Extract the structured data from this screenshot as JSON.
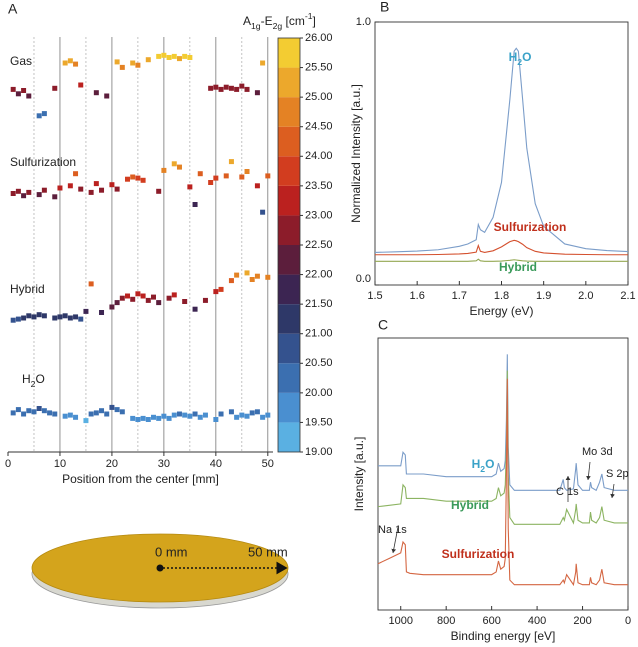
{
  "chart_data": [
    {
      "type": "scatter",
      "panel": "A",
      "colorbar_title": [
        "A",
        "1g",
        "-E",
        "2g",
        " [cm",
        "-1",
        "]"
      ],
      "xlabel": "Position from the center [mm]",
      "xlim": [
        0,
        51
      ],
      "xticks": [
        0,
        10,
        20,
        30,
        40,
        50
      ],
      "clim": [
        19,
        26
      ],
      "cticks": [
        {
          "value": 19,
          "label": "19.00"
        },
        {
          "value": 19.5,
          "label": "19.50"
        },
        {
          "value": 20,
          "label": "20.00"
        },
        {
          "value": 20.5,
          "label": "20.50"
        },
        {
          "value": 21,
          "label": "21.00"
        },
        {
          "value": 21.5,
          "label": "21.50"
        },
        {
          "value": 22,
          "label": "22.00"
        },
        {
          "value": 22.5,
          "label": "22.50"
        },
        {
          "value": 23,
          "label": "23.00"
        },
        {
          "value": 23.5,
          "label": "23.50"
        },
        {
          "value": 24,
          "label": "24.00"
        },
        {
          "value": 24.5,
          "label": "24.50"
        },
        {
          "value": 25,
          "label": "25.00"
        },
        {
          "value": 25.5,
          "label": "25.50"
        },
        {
          "value": 26,
          "label": "26.00"
        }
      ],
      "colors": [
        "#5ab0e2",
        "#4a8fd0",
        "#3b6fb0",
        "#34528e",
        "#2e3868",
        "#3c2552",
        "#5c1e3c",
        "#8c1c2a",
        "#bb211f",
        "#d23d1f",
        "#dc5e20",
        "#e48224",
        "#eca82c",
        "#f3cc32"
      ],
      "rows": [
        {
          "name": "Gas",
          "x": [
            1,
            2,
            3,
            4,
            6,
            7,
            9,
            11,
            12,
            13,
            14,
            17,
            19,
            21,
            22,
            24,
            25,
            27,
            29,
            30,
            31,
            32,
            33,
            34,
            35,
            39,
            40,
            41,
            42,
            43,
            44,
            45,
            46,
            48,
            49
          ],
          "values": [
            22.6,
            22.2,
            22.5,
            22.0,
            20.2,
            20.4,
            22.7,
            25.0,
            25.2,
            24.9,
            23.0,
            22.3,
            22.0,
            25.1,
            24.6,
            25.0,
            24.8,
            25.3,
            25.6,
            25.7,
            25.5,
            25.6,
            25.4,
            25.6,
            25.5,
            22.7,
            22.8,
            22.6,
            22.8,
            22.7,
            22.6,
            22.9,
            22.6,
            22.3,
            25.0
          ]
        },
        {
          "name": "Sulfurization",
          "x": [
            1,
            2,
            3,
            4,
            6,
            7,
            9,
            10,
            12,
            13,
            14,
            16,
            17,
            18,
            20,
            21,
            23,
            24,
            25,
            26,
            29,
            30,
            32,
            33,
            35,
            36,
            37,
            39,
            40,
            42,
            43,
            45,
            46,
            48,
            49,
            50
          ],
          "values": [
            22.5,
            22.7,
            22.3,
            22.6,
            22.4,
            22.8,
            22.2,
            23.0,
            23.2,
            24.3,
            22.9,
            22.6,
            23.4,
            22.8,
            23.3,
            22.9,
            23.8,
            24.0,
            23.9,
            23.7,
            22.7,
            24.6,
            25.2,
            24.9,
            23.1,
            21.5,
            24.3,
            23.5,
            23.9,
            24.1,
            25.4,
            24.0,
            24.5,
            23.2,
            20.8,
            24.1
          ]
        },
        {
          "name": "Hybrid",
          "x": [
            1,
            2,
            3,
            4,
            5,
            6,
            7,
            9,
            10,
            11,
            12,
            13,
            14,
            15,
            16,
            18,
            20,
            21,
            22,
            23,
            24,
            25,
            26,
            27,
            28,
            29,
            31,
            32,
            34,
            36,
            38,
            40,
            41,
            43,
            44,
            46,
            47,
            48,
            50
          ],
          "values": [
            20.8,
            20.9,
            21.0,
            21.2,
            21.1,
            21.3,
            21.2,
            21.0,
            21.1,
            21.2,
            21.0,
            21.1,
            20.9,
            21.6,
            24.1,
            21.5,
            22.0,
            22.4,
            22.8,
            23.0,
            22.7,
            23.2,
            23.0,
            22.6,
            22.9,
            22.4,
            22.8,
            23.1,
            22.5,
            21.8,
            22.6,
            23.4,
            23.6,
            24.4,
            24.9,
            25.1,
            24.5,
            24.8,
            24.7
          ]
        },
        {
          "name": [
            "H",
            "2",
            "O"
          ],
          "x": [
            1,
            2,
            3,
            4,
            5,
            6,
            7,
            8,
            9,
            11,
            12,
            13,
            15,
            16,
            17,
            18,
            19,
            20,
            21,
            22,
            24,
            25,
            26,
            27,
            28,
            29,
            30,
            31,
            32,
            33,
            34,
            35,
            36,
            37,
            38,
            40,
            41,
            43,
            44,
            45,
            46,
            47,
            48,
            49,
            50
          ],
          "values": [
            20.1,
            20.4,
            20.0,
            20.3,
            20.2,
            20.5,
            20.3,
            20.1,
            20.0,
            19.8,
            19.9,
            19.7,
            19.4,
            20.0,
            20.1,
            20.3,
            20.0,
            20.6,
            20.4,
            20.2,
            19.6,
            19.5,
            19.6,
            19.5,
            19.7,
            19.6,
            19.8,
            19.6,
            19.9,
            20.0,
            19.9,
            19.8,
            20.0,
            19.7,
            19.9,
            19.5,
            20.0,
            20.2,
            19.7,
            19.9,
            19.8,
            20.1,
            20.2,
            19.7,
            19.9
          ]
        }
      ]
    },
    {
      "type": "line",
      "panel": "B",
      "xlabel": "Energy (eV)",
      "ylabel": "Normalized Intensity [a.u.]",
      "xlim": [
        1.5,
        2.1
      ],
      "xticks": [
        1.5,
        1.6,
        1.7,
        1.8,
        1.9,
        {
          "value": 2,
          "label": "2.0"
        },
        2.1
      ],
      "ylim": [
        0,
        1
      ],
      "yticks": [
        {
          "value": 0,
          "label": "0.0"
        },
        {
          "value": 1,
          "label": "1.0"
        }
      ],
      "x": [
        1.5,
        1.55,
        1.6,
        1.65,
        1.7,
        1.72,
        1.74,
        1.745,
        1.75,
        1.76,
        1.78,
        1.8,
        1.82,
        1.83,
        1.835,
        1.84,
        1.85,
        1.86,
        1.88,
        1.9,
        1.95,
        2.0,
        2.05,
        2.1
      ],
      "series": [
        {
          "name": [
            "H",
            "2",
            "O"
          ],
          "color": "#7b9dc9",
          "label_color": "#3aa2c8",
          "values": [
            0.124,
            0.126,
            0.129,
            0.134,
            0.147,
            0.156,
            0.172,
            0.23,
            0.21,
            0.2,
            0.257,
            0.39,
            0.708,
            0.889,
            0.9,
            0.889,
            0.708,
            0.52,
            0.309,
            0.223,
            0.156,
            0.138,
            0.131,
            0.127
          ]
        },
        {
          "name": "Sulfurization",
          "color": "#d4502e",
          "label_color": "#c0301c",
          "values": [
            0.115,
            0.115,
            0.115,
            0.116,
            0.118,
            0.12,
            0.125,
            0.15,
            0.128,
            0.124,
            0.13,
            0.145,
            0.165,
            0.17,
            0.168,
            0.165,
            0.155,
            0.142,
            0.128,
            0.122,
            0.117,
            0.116,
            0.115,
            0.115
          ]
        },
        {
          "name": "Hybrid",
          "color": "#94a852",
          "label_color": "#3a9a5a",
          "values": [
            0.09,
            0.09,
            0.09,
            0.09,
            0.09,
            0.09,
            0.092,
            0.098,
            0.092,
            0.09,
            0.09,
            0.091,
            0.094,
            0.096,
            0.095,
            0.094,
            0.092,
            0.091,
            0.09,
            0.09,
            0.09,
            0.09,
            0.09,
            0.09
          ]
        }
      ]
    },
    {
      "type": "line",
      "panel": "C",
      "xlabel": "Binding energy [eV]",
      "ylabel": "Intensity [a.u.]",
      "xlim": [
        1100,
        0
      ],
      "xticks": [
        1000,
        800,
        600,
        400,
        200,
        0
      ],
      "ylim": [
        0,
        1
      ],
      "annotations": [
        "Na 1s",
        "C 1s",
        "Mo 3d",
        "S 2p"
      ],
      "x": [
        1100,
        1050,
        1000,
        990,
        980,
        975,
        960,
        900,
        800,
        700,
        600,
        580,
        570,
        560,
        545,
        540,
        535,
        531,
        527,
        520,
        500,
        450,
        400,
        300,
        285,
        280,
        270,
        240,
        230,
        228,
        220,
        200,
        170,
        165,
        160,
        140,
        125,
        115,
        105,
        60,
        30,
        0
      ],
      "series": [
        {
          "name": [
            "H",
            "2",
            "O"
          ],
          "color": "#7b9dc9",
          "label_color": "#3aa2c8",
          "values": [
            0.53,
            0.53,
            0.53,
            0.58,
            0.57,
            0.5,
            0.5,
            0.5,
            0.49,
            0.49,
            0.49,
            0.5,
            0.54,
            0.51,
            0.52,
            0.55,
            0.7,
            0.94,
            0.6,
            0.46,
            0.44,
            0.44,
            0.44,
            0.44,
            0.48,
            0.45,
            0.44,
            0.445,
            0.52,
            0.54,
            0.46,
            0.44,
            0.44,
            0.47,
            0.45,
            0.44,
            0.47,
            0.5,
            0.45,
            0.44,
            0.44,
            0.44
          ]
        },
        {
          "name": "Hybrid",
          "color": "#8cb462",
          "label_color": "#3a9a5a",
          "values": [
            0.38,
            0.385,
            0.39,
            0.46,
            0.45,
            0.41,
            0.41,
            0.41,
            0.4,
            0.4,
            0.4,
            0.41,
            0.45,
            0.42,
            0.43,
            0.46,
            0.6,
            0.88,
            0.5,
            0.34,
            0.315,
            0.315,
            0.315,
            0.315,
            0.34,
            0.33,
            0.37,
            0.32,
            0.37,
            0.39,
            0.33,
            0.32,
            0.32,
            0.36,
            0.33,
            0.32,
            0.34,
            0.38,
            0.33,
            0.32,
            0.32,
            0.32
          ]
        },
        {
          "name": "Sulfurization",
          "color": "#d46642",
          "label_color": "#c0301c",
          "values": [
            0.17,
            0.19,
            0.21,
            0.25,
            0.24,
            0.14,
            0.135,
            0.13,
            0.13,
            0.13,
            0.13,
            0.14,
            0.18,
            0.15,
            0.16,
            0.19,
            0.5,
            0.85,
            0.3,
            0.11,
            0.093,
            0.093,
            0.093,
            0.093,
            0.11,
            0.1,
            0.13,
            0.093,
            0.14,
            0.17,
            0.1,
            0.093,
            0.093,
            0.12,
            0.1,
            0.093,
            0.11,
            0.15,
            0.1,
            0.093,
            0.093,
            0.093
          ]
        }
      ]
    }
  ],
  "diagram": {
    "labels": [
      "0 mm",
      "50 mm"
    ]
  }
}
